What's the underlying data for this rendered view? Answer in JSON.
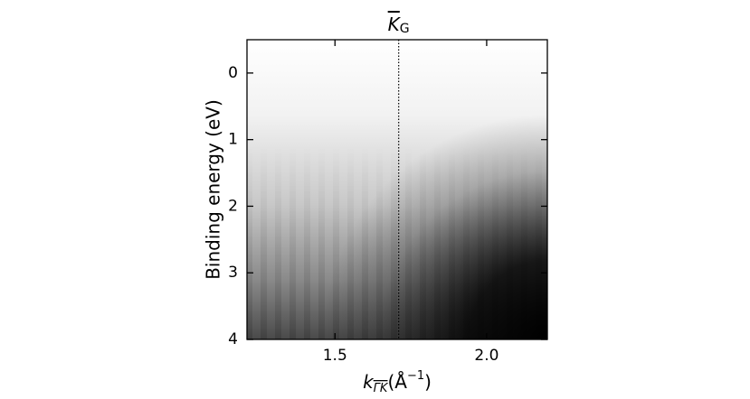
{
  "chart_data": {
    "type": "intensity-map",
    "ylabel": "Binding energy (eV)",
    "xlabel": {
      "symbol": "k",
      "subscript": "ΓK",
      "unit_open": "(Å",
      "unit_exp": "−1",
      "unit_close": ")"
    },
    "xlim": [
      1.21,
      2.2
    ],
    "ylim": [
      -0.5,
      4
    ],
    "y_inverted": true,
    "xticks": [
      1.5,
      {
        "value": 2,
        "label": "2.0"
      }
    ],
    "yticks": [
      0,
      1,
      2,
      3,
      4
    ],
    "marker": {
      "x": 1.71,
      "label": "K",
      "subscript": "G"
    }
  }
}
